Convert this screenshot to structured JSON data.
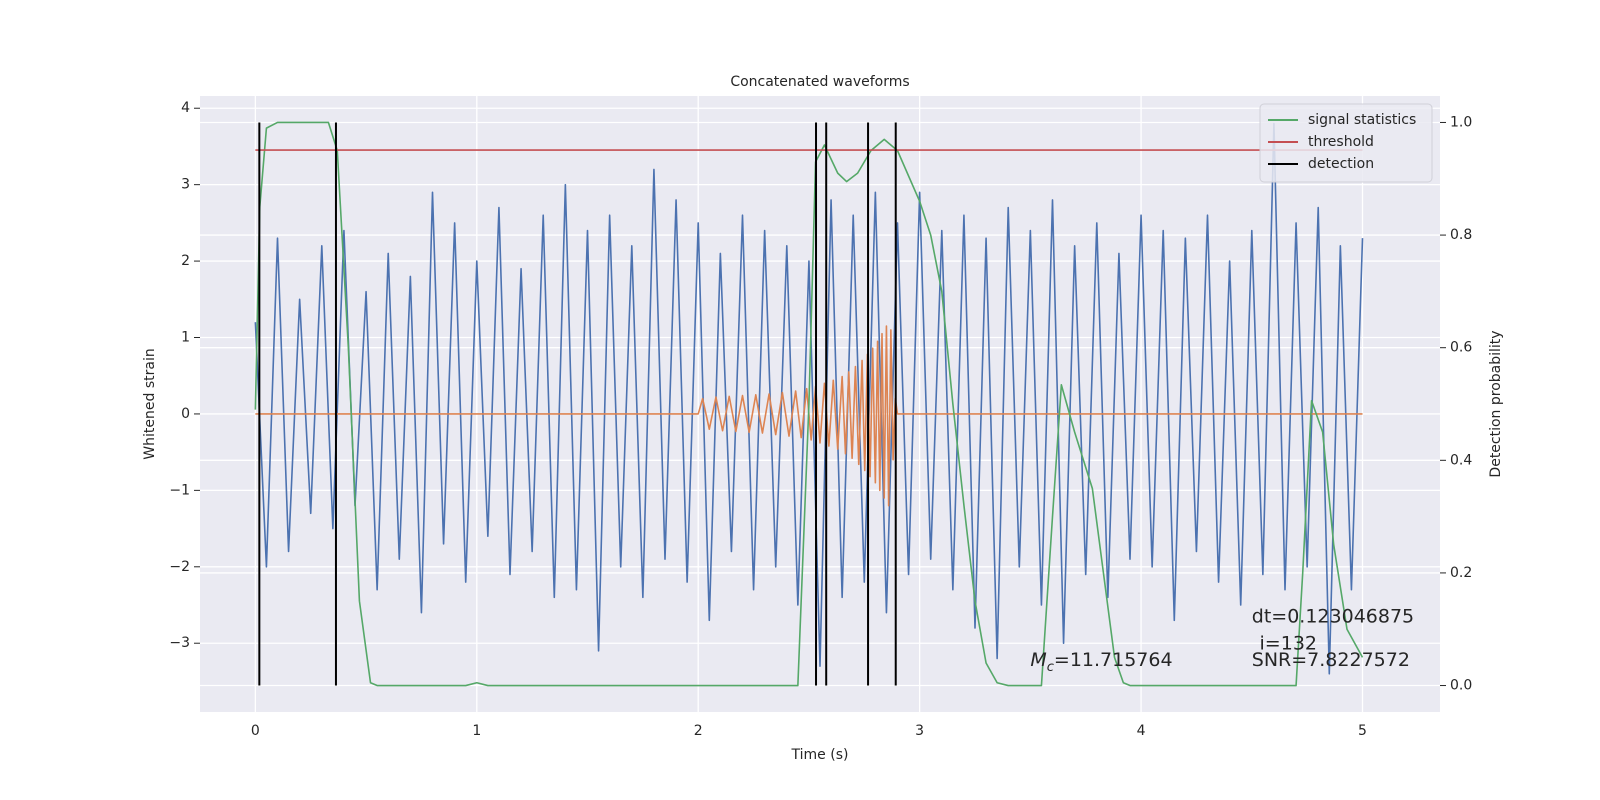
{
  "chart_data": {
    "type": "line",
    "title": "Concatenated waveforms",
    "x_label": "Time (s)",
    "y_label": "Whitened strain",
    "y2_label": "Detection probability",
    "xlim": [
      -0.25,
      5.35
    ],
    "ylim": [
      -3.9,
      4.16
    ],
    "y2lim": [
      -0.047,
      1.047
    ],
    "xticks": [
      0,
      1,
      2,
      3,
      4,
      5
    ],
    "yticks": [
      {
        "value": -3,
        "label": "−3"
      },
      {
        "value": -2,
        "label": "−2"
      },
      {
        "value": -1,
        "label": "−1"
      },
      0,
      1,
      2,
      3,
      4
    ],
    "y2ticks": [
      {
        "value": 0,
        "label": "0.0"
      },
      {
        "value": 0.2,
        "label": "0.2"
      },
      {
        "value": 0.4,
        "label": "0.4"
      },
      {
        "value": 0.6,
        "label": "0.6"
      },
      {
        "value": 0.8,
        "label": "0.8"
      },
      {
        "value": 1,
        "label": "1.0"
      }
    ],
    "grid": true,
    "legend": "upper right",
    "series": [
      {
        "color": "#4c72b0",
        "axis": "y",
        "x": [
          0,
          0.05,
          0.1,
          0.15,
          0.2,
          0.25,
          0.3,
          0.35,
          0.4,
          0.45,
          0.5,
          0.55,
          0.6,
          0.65,
          0.7,
          0.75,
          0.8,
          0.85,
          0.9,
          0.95,
          1,
          1.05,
          1.1,
          1.15,
          1.2,
          1.25,
          1.3,
          1.35,
          1.4,
          1.45,
          1.5,
          1.55,
          1.6,
          1.65,
          1.7,
          1.75,
          1.8,
          1.85,
          1.9,
          1.95,
          2,
          2.05,
          2.1,
          2.15,
          2.2,
          2.25,
          2.3,
          2.35,
          2.4,
          2.45,
          2.5,
          2.55,
          2.6,
          2.65,
          2.7,
          2.75,
          2.8,
          2.85,
          2.9,
          2.95,
          3,
          3.05,
          3.1,
          3.15,
          3.2,
          3.25,
          3.3,
          3.35,
          3.4,
          3.45,
          3.5,
          3.55,
          3.6,
          3.65,
          3.7,
          3.75,
          3.8,
          3.85,
          3.9,
          3.95,
          4,
          4.05,
          4.1,
          4.15,
          4.2,
          4.25,
          4.3,
          4.35,
          4.4,
          4.45,
          4.5,
          4.55,
          4.6,
          4.65,
          4.7,
          4.75,
          4.8,
          4.85,
          4.9,
          4.95,
          5
        ],
        "values": [
          1.2,
          -2.0,
          2.3,
          -1.8,
          1.5,
          -1.3,
          2.2,
          -1.5,
          2.4,
          -1.2,
          1.6,
          -2.3,
          2.1,
          -1.9,
          1.8,
          -2.6,
          2.9,
          -1.7,
          2.5,
          -2.2,
          2.0,
          -1.6,
          2.7,
          -2.1,
          1.9,
          -1.8,
          2.6,
          -2.4,
          3.0,
          -2.3,
          2.4,
          -3.1,
          2.6,
          -2.0,
          2.2,
          -2.4,
          3.2,
          -1.9,
          2.8,
          -2.2,
          2.5,
          -2.7,
          2.1,
          -1.8,
          2.6,
          -2.3,
          2.4,
          -2.0,
          2.2,
          -2.5,
          2.0,
          -3.3,
          2.8,
          -2.4,
          2.6,
          -2.2,
          2.9,
          -2.6,
          2.5,
          -2.1,
          2.9,
          -1.9,
          2.4,
          -2.3,
          2.6,
          -2.8,
          2.3,
          -3.2,
          2.7,
          -2.0,
          2.4,
          -2.5,
          2.8,
          -3.0,
          2.2,
          -2.1,
          2.5,
          -2.4,
          2.1,
          -1.9,
          2.6,
          -2.0,
          2.4,
          -2.7,
          2.3,
          -1.8,
          2.6,
          -2.2,
          2.0,
          -2.5,
          2.4,
          -2.1,
          3.8,
          -2.3,
          2.5,
          -2.0,
          2.7,
          -3.4,
          2.2,
          -2.3,
          2.3
        ]
      },
      {
        "color": "#dd8452",
        "axis": "y",
        "x": [
          0,
          2.0,
          2.02,
          2.05,
          2.08,
          2.11,
          2.14,
          2.17,
          2.2,
          2.23,
          2.26,
          2.29,
          2.32,
          2.35,
          2.38,
          2.41,
          2.44,
          2.465,
          2.49,
          2.51,
          2.53,
          2.55,
          2.57,
          2.59,
          2.61,
          2.63,
          2.65,
          2.665,
          2.68,
          2.695,
          2.71,
          2.725,
          2.74,
          2.752,
          2.764,
          2.776,
          2.788,
          2.8,
          2.81,
          2.82,
          2.83,
          2.84,
          2.85,
          2.86,
          2.87,
          2.88,
          2.89,
          2.9,
          5.0
        ],
        "values": [
          0,
          0,
          0.2,
          -0.2,
          0.22,
          -0.22,
          0.23,
          -0.23,
          0.24,
          -0.24,
          0.25,
          -0.25,
          0.26,
          -0.27,
          0.28,
          -0.29,
          0.3,
          -0.31,
          0.33,
          -0.34,
          0.36,
          -0.38,
          0.4,
          -0.42,
          0.44,
          -0.46,
          0.49,
          -0.52,
          0.55,
          -0.58,
          0.62,
          -0.66,
          0.7,
          -0.74,
          0.78,
          -0.82,
          0.86,
          -0.9,
          0.95,
          -1.0,
          1.05,
          -1.1,
          1.15,
          -1.2,
          1.1,
          -0.6,
          0.2,
          0,
          0
        ]
      },
      {
        "name": "signal statistics",
        "color": "#55a868",
        "axis": "y2",
        "x": [
          0,
          0.02,
          0.05,
          0.1,
          0.33,
          0.37,
          0.42,
          0.47,
          0.52,
          0.55,
          0.95,
          1.0,
          1.05,
          2.45,
          2.5,
          2.53,
          2.57,
          2.63,
          2.67,
          2.72,
          2.78,
          2.84,
          2.9,
          3.0,
          3.05,
          3.1,
          3.15,
          3.2,
          3.25,
          3.3,
          3.35,
          3.4,
          3.55,
          3.6,
          3.64,
          3.7,
          3.78,
          3.83,
          3.88,
          3.92,
          3.95,
          4.7,
          4.73,
          4.77,
          4.82,
          4.87,
          4.93,
          5.0
        ],
        "values": [
          0.49,
          0.85,
          0.99,
          1.0,
          1.0,
          0.95,
          0.6,
          0.15,
          0.005,
          0.0,
          0.0,
          0.005,
          0.0,
          0.0,
          0.5,
          0.93,
          0.96,
          0.91,
          0.895,
          0.91,
          0.95,
          0.97,
          0.95,
          0.86,
          0.8,
          0.7,
          0.5,
          0.32,
          0.15,
          0.04,
          0.005,
          0.0,
          0.0,
          0.3,
          0.534,
          0.45,
          0.35,
          0.2,
          0.05,
          0.005,
          0.0,
          0.0,
          0.2,
          0.506,
          0.45,
          0.25,
          0.1,
          0.05
        ]
      },
      {
        "name": "threshold",
        "color": "#c44e52",
        "axis": "y2",
        "x": [
          0,
          5
        ],
        "values": [
          0.951,
          0.951
        ]
      },
      {
        "name": "detection",
        "color": "#000000",
        "axis": "y2",
        "type": "vlines",
        "x": [
          0.018,
          0.364,
          2.532,
          2.578,
          2.767,
          2.892
        ],
        "ymin": 0,
        "ymax": 1
      }
    ],
    "annotations": {
      "mc": {
        "symbol": "M",
        "subscript": "c",
        "text": "=11.715764"
      },
      "dt": "dt=0.123046875",
      "i": "i=132",
      "snr": "SNR=7.8227572"
    }
  }
}
